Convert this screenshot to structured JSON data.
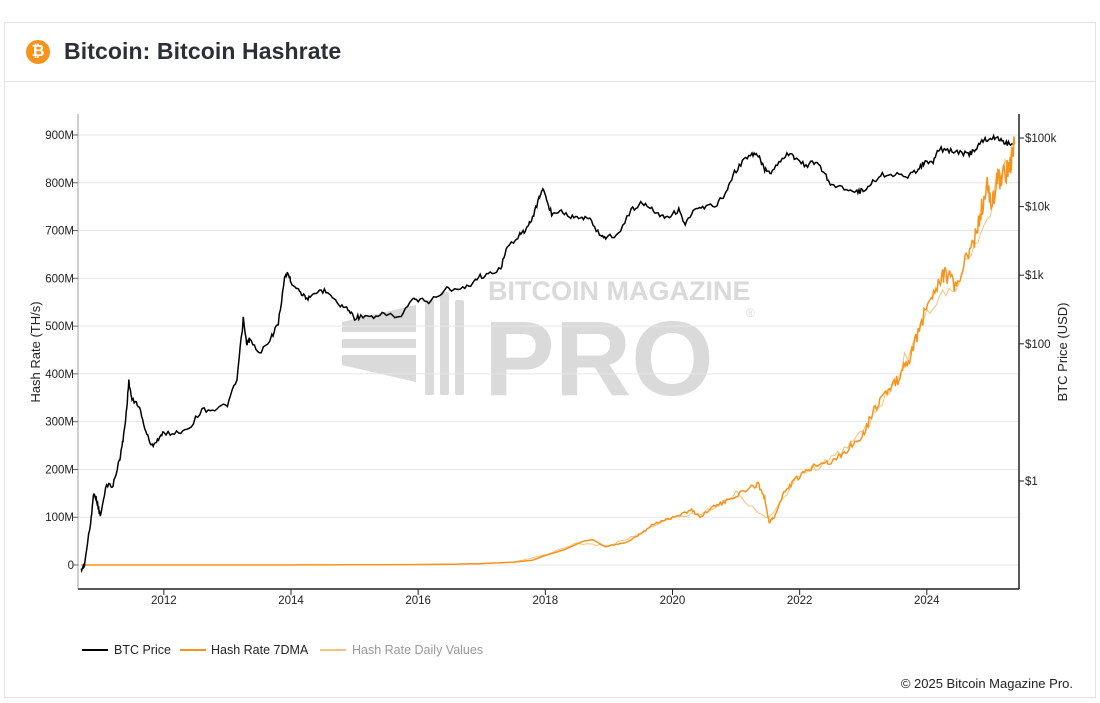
{
  "header": {
    "logo_glyph": "₿",
    "logo_icon": "bitcoin-logo-icon",
    "title": "Bitcoin: Bitcoin Hashrate"
  },
  "watermark": {
    "line1": "BITCOIN MAGAZINE",
    "line2": "PRO",
    "registered": "®"
  },
  "footer": {
    "copyright": "© 2025 Bitcoin Magazine Pro."
  },
  "colors": {
    "btc_price": "#000000",
    "hash_7dma": "#f7931a",
    "hash_daily": "#f5c27a",
    "grid": "#e6e6e6",
    "watermark": "#d9d9d9"
  },
  "chart_data": {
    "type": "line",
    "title": "Bitcoin: Bitcoin Hashrate",
    "ylabel": "Hash Rate (TH/s)",
    "y2label": "BTC Price (USD)",
    "xlim": [
      2010.65,
      2025.45
    ],
    "ylim": [
      0,
      950
    ],
    "y2_scale": "log",
    "y2lim": [
      0.01,
      200000
    ],
    "grid": true,
    "legend_position": "bottom-left",
    "x_ticks": [
      {
        "value": 2012,
        "label": "2012"
      },
      {
        "value": 2014,
        "label": "2014"
      },
      {
        "value": 2016,
        "label": "2016"
      },
      {
        "value": 2018,
        "label": "2018"
      },
      {
        "value": 2020,
        "label": "2020"
      },
      {
        "value": 2022,
        "label": "2022"
      },
      {
        "value": 2024,
        "label": "2024"
      }
    ],
    "y_ticks": [
      {
        "value": 0,
        "label": "0"
      },
      {
        "value": 100,
        "label": "100M"
      },
      {
        "value": 200,
        "label": "200M"
      },
      {
        "value": 300,
        "label": "300M"
      },
      {
        "value": 400,
        "label": "400M"
      },
      {
        "value": 500,
        "label": "500M"
      },
      {
        "value": 600,
        "label": "600M"
      },
      {
        "value": 700,
        "label": "700M"
      },
      {
        "value": 800,
        "label": "800M"
      },
      {
        "value": 900,
        "label": "900M"
      }
    ],
    "y2_ticks": [
      {
        "value": 100000,
        "label": "$100k"
      },
      {
        "value": 10000,
        "label": "$10k"
      },
      {
        "value": 1000,
        "label": "$1k"
      },
      {
        "value": 100,
        "label": "$100"
      },
      {
        "value": 1,
        "label": "$1"
      }
    ],
    "series": [
      {
        "name": "BTC Price",
        "axis": "right",
        "style": "line",
        "points": [
          [
            2010.7,
            0.05
          ],
          [
            2010.75,
            0.06
          ],
          [
            2010.85,
            0.25
          ],
          [
            2010.9,
            0.7
          ],
          [
            2010.95,
            0.5
          ],
          [
            2011.0,
            0.3
          ],
          [
            2011.1,
            0.9
          ],
          [
            2011.2,
            0.85
          ],
          [
            2011.3,
            2.0
          ],
          [
            2011.35,
            3.5
          ],
          [
            2011.4,
            8
          ],
          [
            2011.45,
            28
          ],
          [
            2011.5,
            15
          ],
          [
            2011.6,
            13
          ],
          [
            2011.7,
            6
          ],
          [
            2011.8,
            3.2
          ],
          [
            2011.9,
            4
          ],
          [
            2012.0,
            5
          ],
          [
            2012.2,
            5
          ],
          [
            2012.4,
            6
          ],
          [
            2012.6,
            11
          ],
          [
            2012.8,
            11
          ],
          [
            2013.0,
            13
          ],
          [
            2013.15,
            30
          ],
          [
            2013.25,
            230
          ],
          [
            2013.3,
            100
          ],
          [
            2013.35,
            115
          ],
          [
            2013.5,
            70
          ],
          [
            2013.7,
            130
          ],
          [
            2013.8,
            200
          ],
          [
            2013.9,
            900
          ],
          [
            2013.95,
            1100
          ],
          [
            2014.0,
            800
          ],
          [
            2014.1,
            650
          ],
          [
            2014.2,
            500
          ],
          [
            2014.3,
            450
          ],
          [
            2014.45,
            600
          ],
          [
            2014.6,
            580
          ],
          [
            2014.75,
            370
          ],
          [
            2014.9,
            320
          ],
          [
            2015.0,
            240
          ],
          [
            2015.1,
            250
          ],
          [
            2015.3,
            235
          ],
          [
            2015.5,
            280
          ],
          [
            2015.7,
            235
          ],
          [
            2015.9,
            430
          ],
          [
            2016.0,
            430
          ],
          [
            2016.2,
            420
          ],
          [
            2016.45,
            650
          ],
          [
            2016.6,
            600
          ],
          [
            2016.8,
            700
          ],
          [
            2016.95,
            960
          ],
          [
            2017.1,
            1000
          ],
          [
            2017.3,
            1300
          ],
          [
            2017.4,
            2500
          ],
          [
            2017.6,
            4000
          ],
          [
            2017.7,
            4500
          ],
          [
            2017.8,
            7000
          ],
          [
            2017.9,
            13000
          ],
          [
            2017.96,
            19000
          ],
          [
            2018.05,
            10000
          ],
          [
            2018.1,
            8000
          ],
          [
            2018.25,
            9000
          ],
          [
            2018.4,
            7000
          ],
          [
            2018.55,
            7000
          ],
          [
            2018.7,
            6500
          ],
          [
            2018.85,
            4000
          ],
          [
            2018.95,
            3500
          ],
          [
            2019.15,
            4000
          ],
          [
            2019.35,
            9000
          ],
          [
            2019.5,
            11000
          ],
          [
            2019.65,
            10000
          ],
          [
            2019.8,
            7500
          ],
          [
            2019.95,
            7200
          ],
          [
            2020.1,
            9000
          ],
          [
            2020.2,
            5500
          ],
          [
            2020.35,
            9000
          ],
          [
            2020.5,
            9500
          ],
          [
            2020.7,
            11000
          ],
          [
            2020.85,
            16000
          ],
          [
            2020.95,
            29000
          ],
          [
            2021.1,
            45000
          ],
          [
            2021.25,
            58000
          ],
          [
            2021.35,
            55000
          ],
          [
            2021.45,
            35000
          ],
          [
            2021.55,
            32000
          ],
          [
            2021.7,
            48000
          ],
          [
            2021.85,
            63000
          ],
          [
            2021.95,
            47000
          ],
          [
            2022.1,
            40000
          ],
          [
            2022.25,
            45000
          ],
          [
            2022.4,
            30000
          ],
          [
            2022.5,
            20000
          ],
          [
            2022.7,
            19000
          ],
          [
            2022.9,
            16500
          ],
          [
            2023.0,
            17000
          ],
          [
            2023.15,
            23000
          ],
          [
            2023.3,
            29000
          ],
          [
            2023.5,
            30000
          ],
          [
            2023.7,
            26500
          ],
          [
            2023.85,
            35000
          ],
          [
            2023.95,
            43000
          ],
          [
            2024.1,
            45000
          ],
          [
            2024.2,
            70000
          ],
          [
            2024.35,
            65000
          ],
          [
            2024.5,
            62000
          ],
          [
            2024.65,
            58000
          ],
          [
            2024.75,
            64000
          ],
          [
            2024.85,
            90000
          ],
          [
            2024.95,
            95000
          ],
          [
            2025.05,
            102000
          ],
          [
            2025.15,
            96000
          ],
          [
            2025.25,
            84000
          ],
          [
            2025.35,
            82000
          ]
        ]
      },
      {
        "name": "Hash Rate 7DMA",
        "axis": "left",
        "style": "line",
        "points": [
          [
            2010.7,
            0
          ],
          [
            2012.0,
            0.01
          ],
          [
            2014.0,
            0.1
          ],
          [
            2015.0,
            0.4
          ],
          [
            2016.0,
            1
          ],
          [
            2016.5,
            1.5
          ],
          [
            2017.0,
            3
          ],
          [
            2017.5,
            6
          ],
          [
            2017.8,
            10
          ],
          [
            2018.0,
            20
          ],
          [
            2018.3,
            32
          ],
          [
            2018.6,
            50
          ],
          [
            2018.75,
            53
          ],
          [
            2018.85,
            45
          ],
          [
            2018.95,
            38
          ],
          [
            2019.1,
            43
          ],
          [
            2019.3,
            48
          ],
          [
            2019.5,
            65
          ],
          [
            2019.7,
            85
          ],
          [
            2019.9,
            95
          ],
          [
            2020.1,
            105
          ],
          [
            2020.3,
            115
          ],
          [
            2020.45,
            100
          ],
          [
            2020.6,
            120
          ],
          [
            2020.8,
            130
          ],
          [
            2021.0,
            145
          ],
          [
            2021.2,
            160
          ],
          [
            2021.35,
            170
          ],
          [
            2021.45,
            140
          ],
          [
            2021.52,
            90
          ],
          [
            2021.6,
            100
          ],
          [
            2021.75,
            150
          ],
          [
            2021.9,
            175
          ],
          [
            2022.1,
            195
          ],
          [
            2022.3,
            215
          ],
          [
            2022.5,
            215
          ],
          [
            2022.65,
            230
          ],
          [
            2022.85,
            255
          ],
          [
            2023.0,
            275
          ],
          [
            2023.15,
            320
          ],
          [
            2023.3,
            355
          ],
          [
            2023.45,
            370
          ],
          [
            2023.6,
            400
          ],
          [
            2023.75,
            440
          ],
          [
            2023.9,
            500
          ],
          [
            2024.05,
            560
          ],
          [
            2024.2,
            600
          ],
          [
            2024.3,
            610
          ],
          [
            2024.45,
            580
          ],
          [
            2024.6,
            630
          ],
          [
            2024.75,
            680
          ],
          [
            2024.85,
            740
          ],
          [
            2024.95,
            790
          ],
          [
            2025.02,
            750
          ],
          [
            2025.1,
            800
          ],
          [
            2025.2,
            820
          ],
          [
            2025.3,
            830
          ],
          [
            2025.38,
            880
          ]
        ]
      },
      {
        "name": "Hash Rate Daily Values",
        "axis": "left",
        "style": "line",
        "points": [
          [
            2017.5,
            6
          ],
          [
            2018.0,
            21
          ],
          [
            2018.5,
            45
          ],
          [
            2019.0,
            40
          ],
          [
            2019.5,
            66
          ],
          [
            2020.0,
            100
          ],
          [
            2020.5,
            110
          ],
          [
            2021.0,
            150
          ],
          [
            2021.5,
            95
          ],
          [
            2022.0,
            190
          ],
          [
            2022.5,
            220
          ],
          [
            2023.0,
            280
          ],
          [
            2023.5,
            380
          ],
          [
            2024.0,
            540
          ],
          [
            2024.5,
            600
          ],
          [
            2025.0,
            760
          ],
          [
            2025.38,
            890
          ]
        ]
      }
    ]
  }
}
